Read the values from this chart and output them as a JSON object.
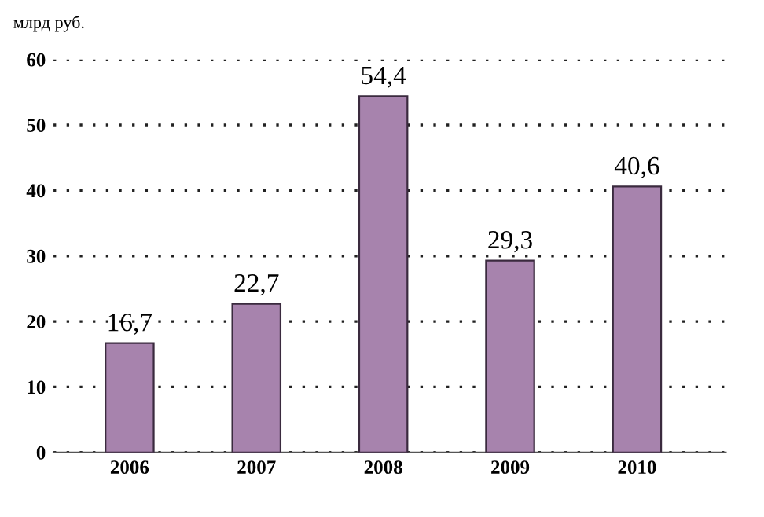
{
  "chart_data": {
    "type": "bar",
    "ylabel": "млрд руб.",
    "categories": [
      "2006",
      "2007",
      "2008",
      "2009",
      "2010"
    ],
    "values": [
      16.7,
      22.7,
      54.4,
      29.3,
      40.6
    ],
    "value_labels": [
      "16,7",
      "22,7",
      "54,4",
      "29,3",
      "40,6"
    ],
    "color": "#a783ad",
    "ylim": [
      0,
      60
    ],
    "yticks": [
      0,
      10,
      20,
      30,
      40,
      50,
      60
    ],
    "grid": "y",
    "line_style": "dotted"
  }
}
